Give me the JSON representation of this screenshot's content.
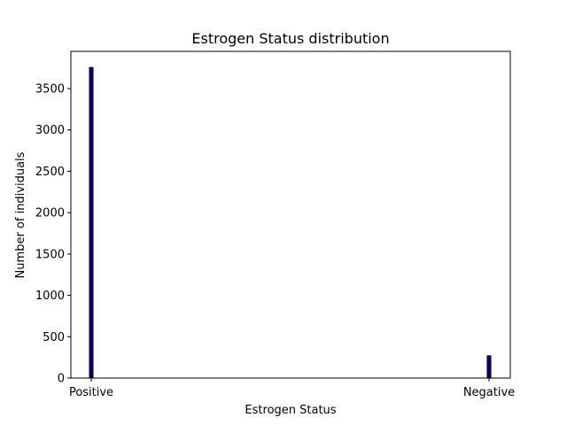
{
  "chart_data": {
    "type": "bar",
    "title": "Estrogen Status distribution",
    "xlabel": "Estrogen Status",
    "ylabel": "Number of individuals",
    "categories": [
      "Positive",
      "Negative"
    ],
    "values": [
      3755,
      269
    ],
    "ylim": [
      0,
      3950
    ],
    "yticks": [
      0,
      500,
      1000,
      1500,
      2000,
      2500,
      3000,
      3500
    ],
    "bar_color": "#00008b",
    "edge_color": "#000000",
    "grid": false,
    "legend": "none"
  }
}
